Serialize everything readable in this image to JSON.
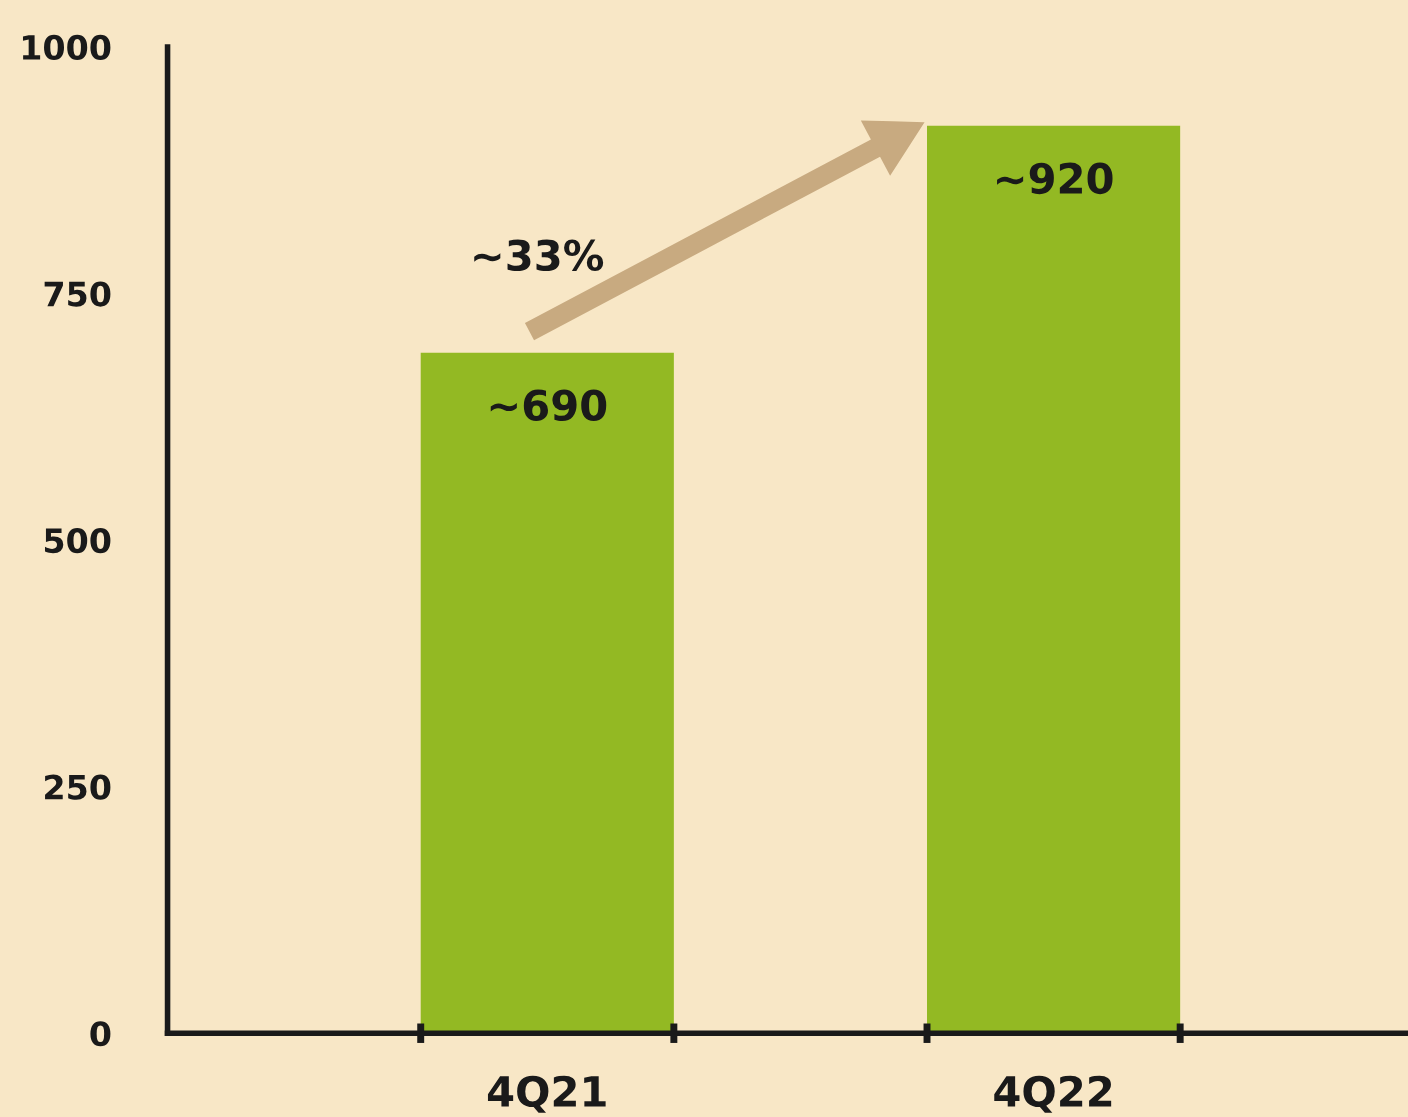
{
  "chart_data": {
    "type": "bar",
    "categories": [
      "4Q21",
      "4Q22"
    ],
    "values": [
      690,
      920
    ],
    "color": "#93b923",
    "value_labels": [
      "~690",
      "~920"
    ],
    "annotations": [
      "~33%"
    ],
    "ylim": [
      0,
      1000
    ],
    "yticks": [
      0,
      250,
      500,
      750,
      1000
    ],
    "grid": false,
    "legend": false
  }
}
